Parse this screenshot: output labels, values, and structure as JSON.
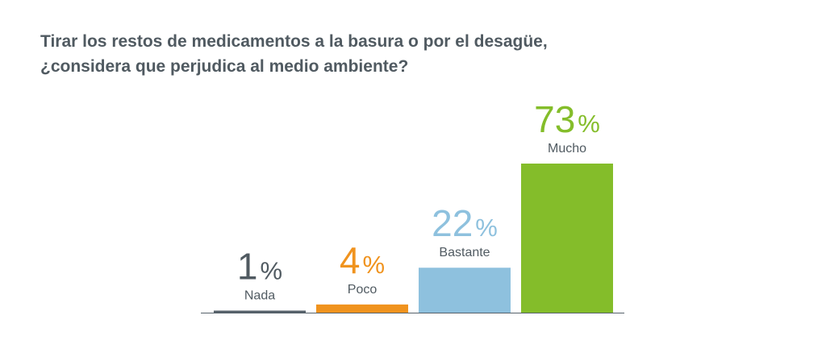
{
  "title_lines": [
    "Tirar los restos de medicamentos a la basura o por el desagüe,",
    "¿considera que perjudica al medio ambiente?"
  ],
  "chart_data": {
    "type": "bar",
    "title": "Tirar los restos de medicamentos a la basura o por el desagüe, ¿considera que perjudica al medio ambiente?",
    "categories": [
      "Nada",
      "Poco",
      "Bastante",
      "Mucho"
    ],
    "values": [
      1,
      4,
      22,
      73
    ],
    "value_labels": [
      "1",
      "4",
      "22",
      "73"
    ],
    "unit": "%",
    "colors": [
      "#56616a",
      "#f0931e",
      "#8ec1de",
      "#84bd2a"
    ],
    "label_color": "#505a61",
    "baseline_color": "#56616a",
    "xlabel": "",
    "ylabel": "",
    "ylim": [
      0,
      73
    ],
    "grid": false,
    "legend": "none"
  }
}
